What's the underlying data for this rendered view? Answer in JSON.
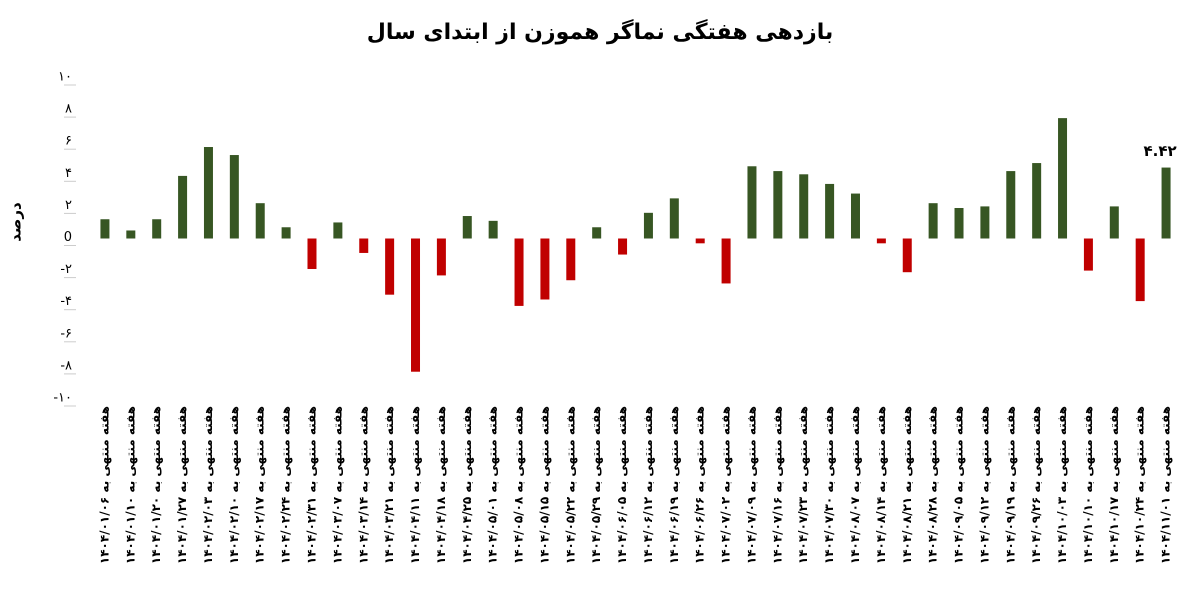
{
  "chart_data": {
    "type": "bar",
    "title": "بازدهی هفتگی نماگر هموزن از ابتدای سال",
    "y_label": "درصد",
    "categories": [
      "هفته منتهی به ۱۴۰۴/۰۱/۰۶",
      "هفته منتهی به ۱۴۰۴/۰۱/۱۰",
      "هفته منتهی به ۱۴۰۴/۰۱/۲۰",
      "هفته منتهی به ۱۴۰۴/۰۱/۲۷",
      "هفته منتهی به ۱۴۰۴/۰۲/۰۳",
      "هفته منتهی به ۱۴۰۴/۰۲/۱۰",
      "هفته منتهی به ۱۴۰۴/۰۲/۱۷",
      "هفته منتهی به ۱۴۰۴/۰۲/۲۴",
      "هفته منتهی به ۱۴۰۴/۰۲/۳۱",
      "هفته منتهی به ۱۴۰۴/۰۳/۰۷",
      "هفته منتهی به ۱۴۰۴/۰۳/۱۴",
      "هفته منتهی به ۱۴۰۴/۰۳/۲۱",
      "هفته منتهی به ۱۴۰۴/۰۴/۱۱",
      "هفته منتهی به ۱۴۰۴/۰۴/۱۸",
      "هفته منتهی به ۱۴۰۴/۰۴/۲۵",
      "هفته منتهی به ۱۴۰۴/۰۵/۰۱",
      "هفته منتهی به ۱۴۰۴/۰۵/۰۸",
      "هفته منتهی به ۱۴۰۴/۰۵/۱۵",
      "هفته منتهی به ۱۴۰۴/۰۵/۲۲",
      "هفته منتهی به ۱۴۰۴/۰۵/۲۹",
      "هفته منتهی به ۱۴۰۴/۰۶/۰۵",
      "هفته منتهی به ۱۴۰۴/۰۶/۱۲",
      "هفته منتهی به ۱۴۰۴/۰۶/۱۹",
      "هفته منتهی به ۱۴۰۴/۰۶/۲۶",
      "هفته منتهی به ۱۴۰۴/۰۷/۰۲",
      "هفته منتهی به ۱۴۰۴/۰۷/۰۹",
      "هفته منتهی به ۱۴۰۴/۰۷/۱۶",
      "هفته منتهی به ۱۴۰۴/۰۷/۲۳",
      "هفته منتهی به ۱۴۰۴/۰۷/۳۰",
      "هفته منتهی به ۱۴۰۴/۰۸/۰۷",
      "هفته منتهی به ۱۴۰۴/۰۸/۱۴",
      "هفته منتهی به ۱۴۰۴/۰۸/۲۱",
      "هفته منتهی به ۱۴۰۴/۰۸/۲۸",
      "هفته منتهی به ۱۴۰۴/۰۹/۰۵",
      "هفته منتهی به ۱۴۰۴/۰۹/۱۲",
      "هفته منتهی به ۱۴۰۴/۰۹/۱۹",
      "هفته منتهی به ۱۴۰۴/۰۹/۲۶",
      "هفته منتهی به ۱۴۰۴/۱۰/۰۳",
      "هفته منتهی به ۱۴۰۴/۱۰/۱۰",
      "هفته منتهی به ۱۴۰۴/۱۰/۱۷",
      "هفته منتهی به ۱۴۰۴/۱۰/۲۴",
      "هفته منتهی به ۱۴۰۴/۱۱/۰۱"
    ],
    "values": [
      1.2,
      0.5,
      1.2,
      3.9,
      5.7,
      5.2,
      2.2,
      0.7,
      -1.9,
      1.0,
      -0.9,
      -3.5,
      -8.3,
      -2.3,
      1.4,
      1.1,
      -4.2,
      -3.8,
      -2.6,
      0.7,
      -1.0,
      1.6,
      2.5,
      -0.3,
      -2.8,
      4.5,
      4.2,
      4.0,
      3.4,
      2.8,
      -0.3,
      -2.1,
      2.2,
      1.9,
      2.0,
      4.2,
      4.7,
      7.5,
      -2.0,
      2.0,
      -3.9,
      4.42
    ],
    "value_labels": [
      null,
      null,
      null,
      null,
      null,
      null,
      null,
      null,
      null,
      null,
      null,
      null,
      null,
      null,
      null,
      null,
      null,
      null,
      null,
      null,
      null,
      null,
      null,
      null,
      null,
      null,
      null,
      null,
      null,
      null,
      null,
      null,
      null,
      null,
      null,
      null,
      null,
      null,
      null,
      null,
      null,
      "۴.۴۲"
    ],
    "positive_color": "#375623",
    "negative_color": "#c00000",
    "ylim": [
      -10,
      10
    ],
    "yticks": [
      {
        "value": 10,
        "label": "۱۰"
      },
      {
        "value": 8,
        "label": "۸"
      },
      {
        "value": 6,
        "label": "۶"
      },
      {
        "value": 4,
        "label": "۴"
      },
      {
        "value": 2,
        "label": "۲"
      },
      0,
      {
        "value": -2,
        "label": "-۲"
      },
      {
        "value": -4,
        "label": "-۴"
      },
      {
        "value": -6,
        "label": "-۶"
      },
      {
        "value": -8,
        "label": "-۸"
      },
      {
        "value": -10,
        "label": "-۱۰"
      }
    ],
    "grid": false
  }
}
